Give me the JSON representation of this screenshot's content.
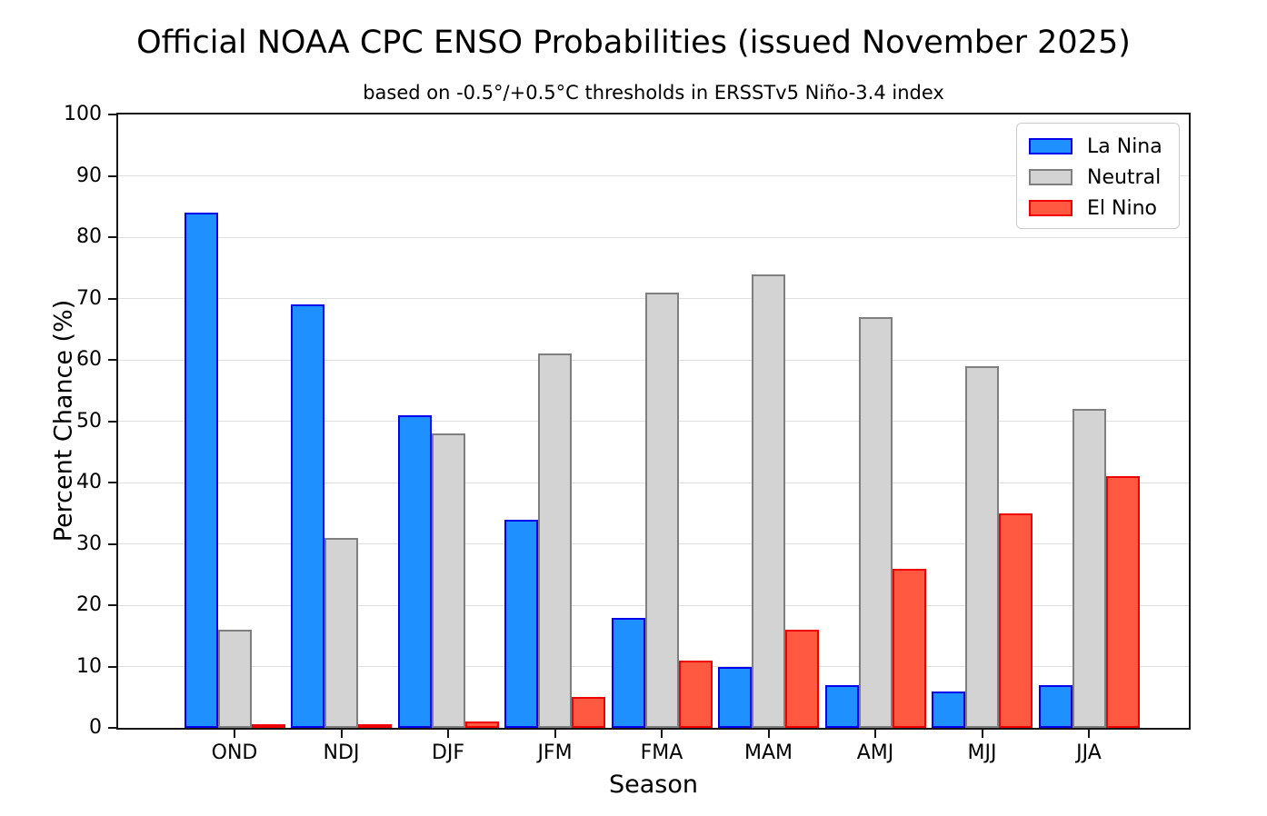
{
  "chart_data": {
    "type": "bar",
    "title": "Official NOAA CPC ENSO Probabilities (issued November 2025)",
    "subtitle": "based on -0.5°/+0.5°C thresholds in ERSSTv5 Niño-3.4 index",
    "xlabel": "Season",
    "ylabel": "Percent Chance (%)",
    "categories": [
      "OND",
      "NDJ",
      "DJF",
      "JFM",
      "FMA",
      "MAM",
      "AMJ",
      "MJJ",
      "JJA"
    ],
    "series": [
      {
        "name": "La Nina",
        "fill": "#1E90FF",
        "edge": "#0000EB",
        "values": [
          84,
          69,
          51,
          34,
          18,
          10,
          7,
          6,
          7
        ]
      },
      {
        "name": "Neutral",
        "fill": "#D3D3D3",
        "edge": "#7F7F7F",
        "values": [
          16,
          31,
          48,
          61,
          71,
          74,
          67,
          59,
          52
        ]
      },
      {
        "name": "El Nino",
        "fill": "#FF5A41",
        "edge": "#EF0000",
        "values": [
          0,
          0,
          1,
          5,
          11,
          16,
          26,
          35,
          41
        ]
      }
    ],
    "ylim": [
      0,
      100
    ],
    "yticks": [
      0,
      10,
      20,
      30,
      40,
      50,
      60,
      70,
      80,
      90,
      100
    ],
    "grid": true,
    "legend_position": "upper right"
  }
}
